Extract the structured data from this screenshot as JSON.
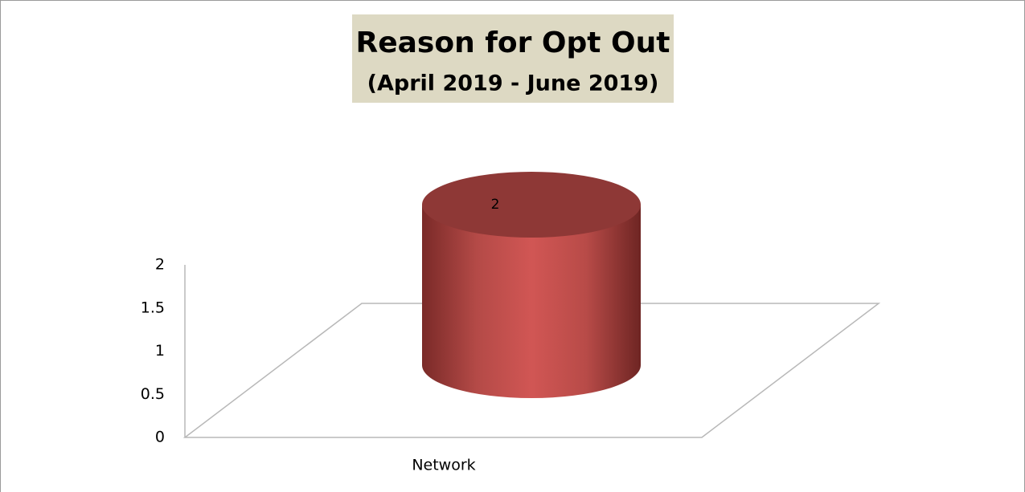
{
  "chart_data": {
    "type": "bar3d_cylinder",
    "title": "Reason for Opt Out",
    "subtitle": "(April 2019 - June 2019)",
    "categories": [
      "Network"
    ],
    "values": [
      2
    ],
    "color": "#c0504d",
    "ylim": [
      0,
      2
    ],
    "yticks": [
      0,
      0.5,
      1,
      1.5,
      2
    ],
    "grid": false
  }
}
